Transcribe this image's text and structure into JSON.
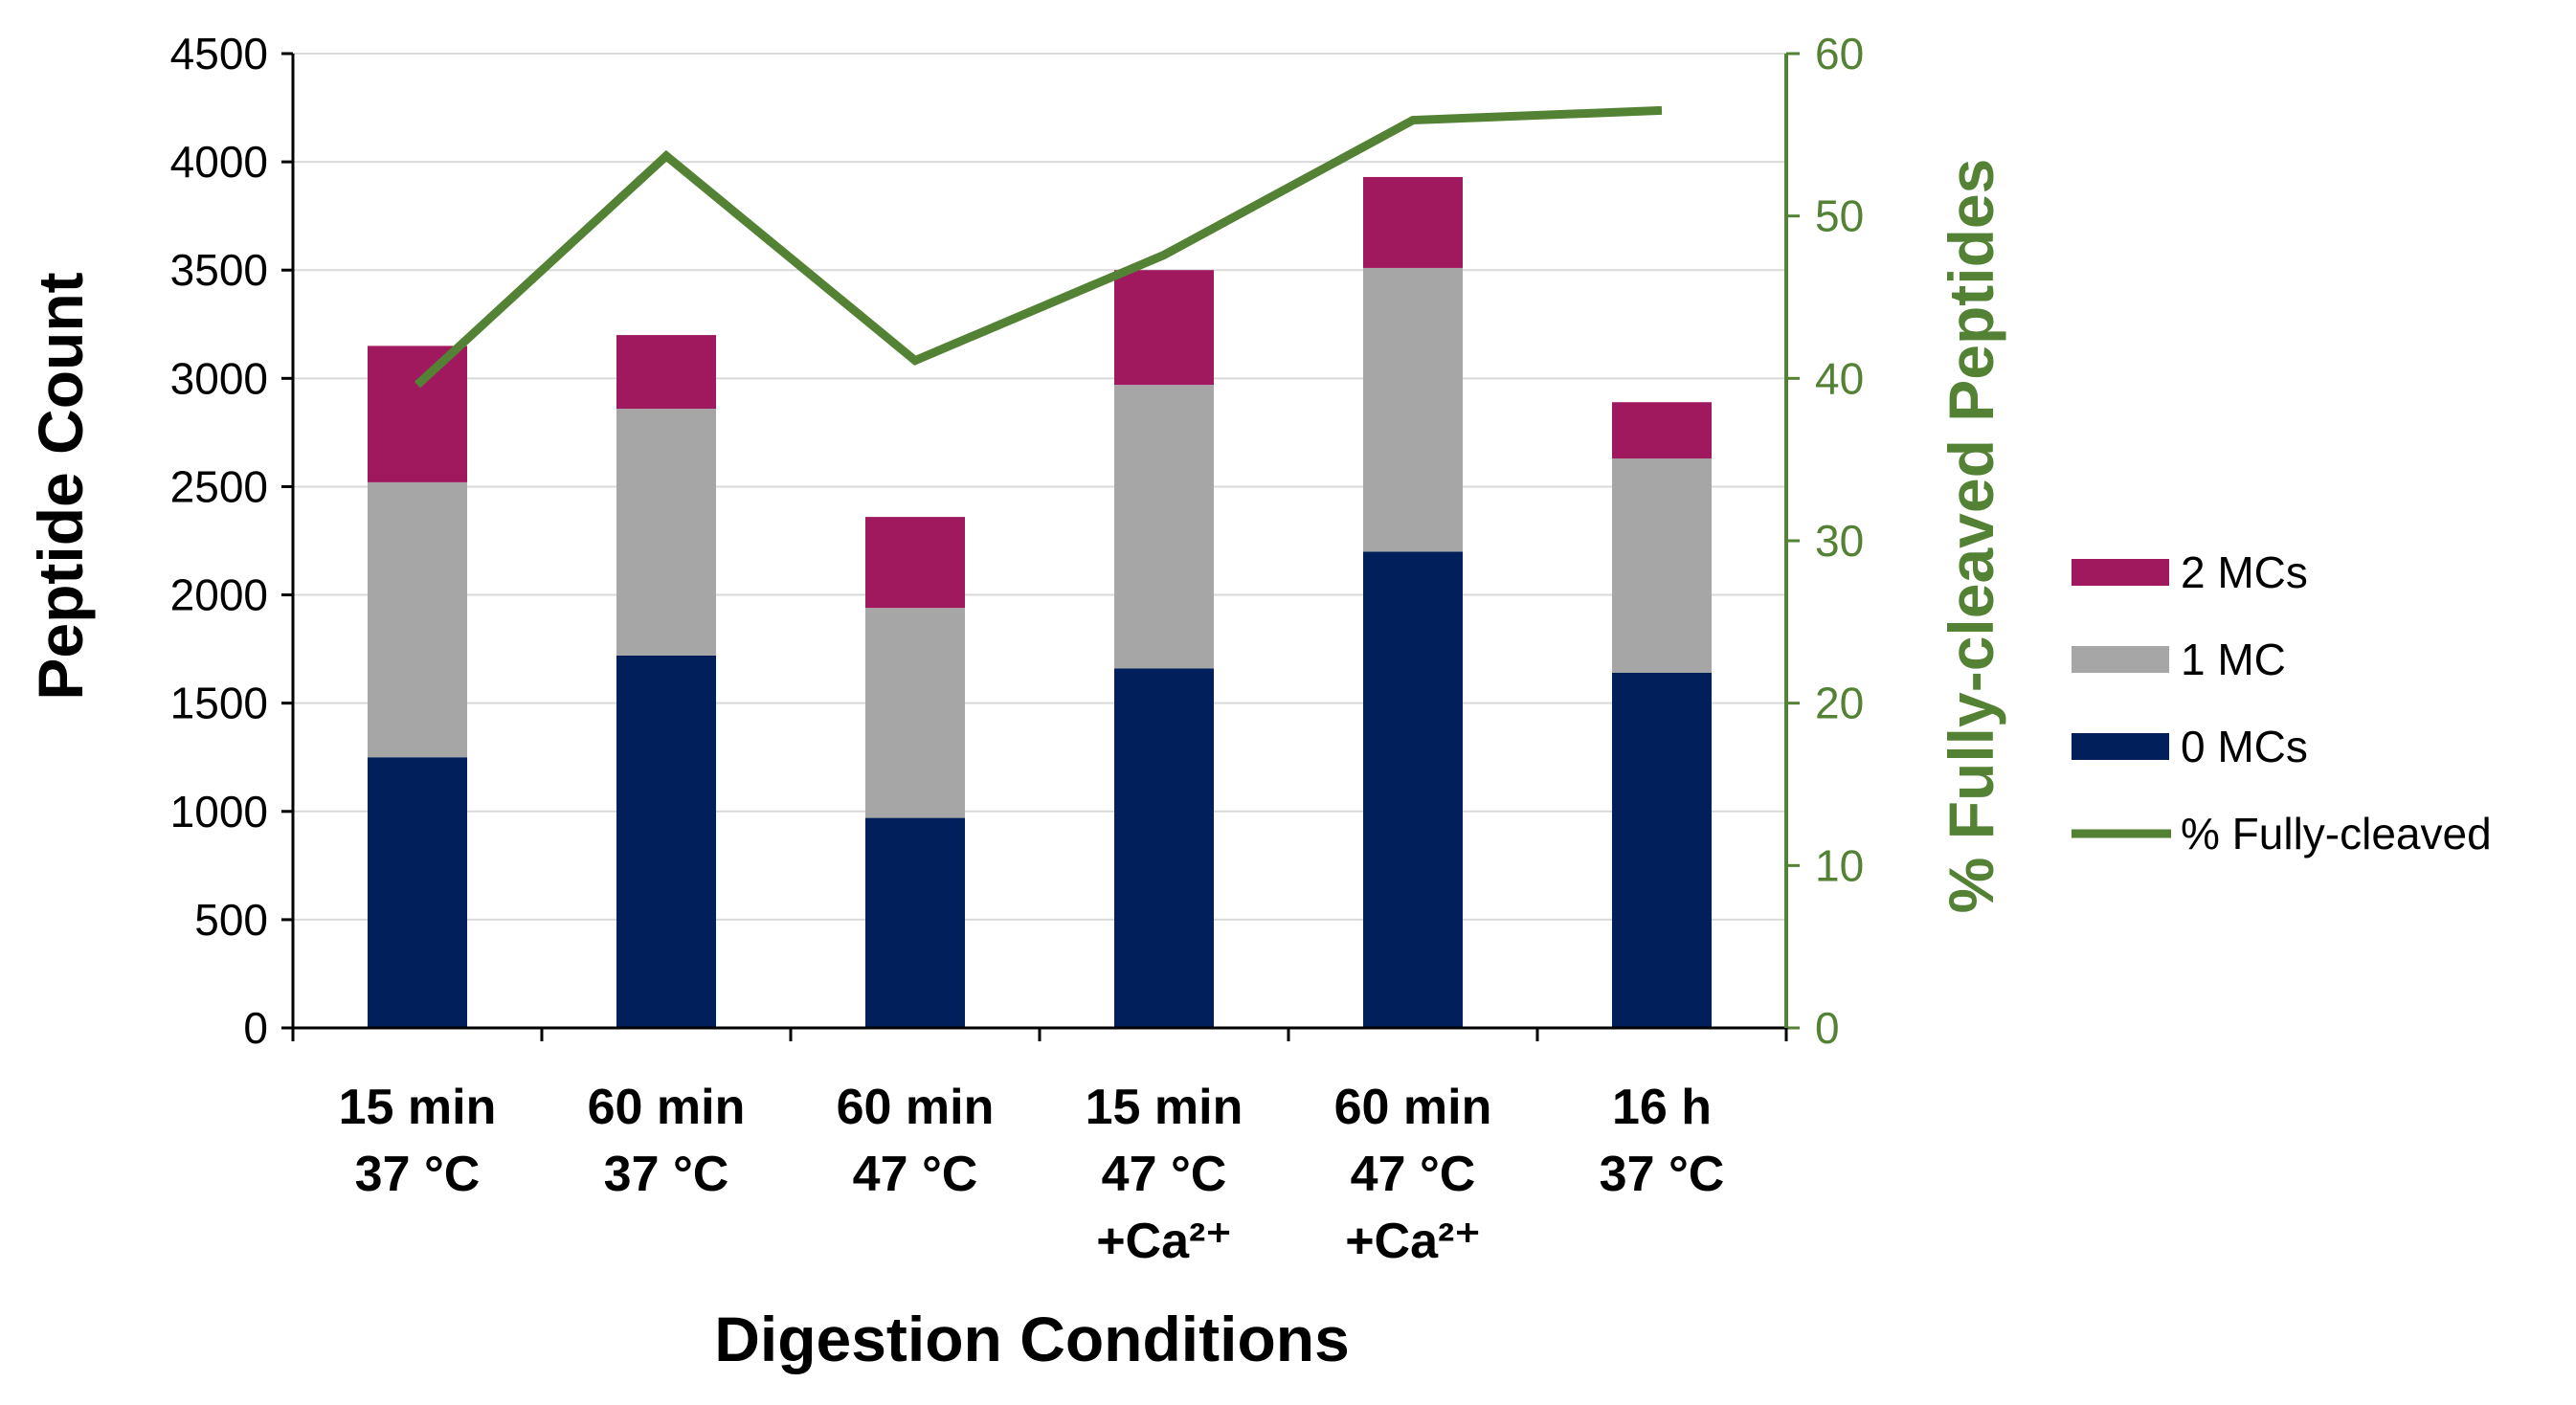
{
  "chart_data": {
    "type": "bar",
    "stacked": true,
    "categories": [
      [
        "15 min",
        "37 °C"
      ],
      [
        "60 min",
        "37 °C"
      ],
      [
        "60 min",
        "47 °C"
      ],
      [
        "15 min",
        "47 °C",
        "+Ca²⁺"
      ],
      [
        "60 min",
        "47 °C",
        "+Ca²⁺"
      ],
      [
        "16 h",
        "37 °C"
      ]
    ],
    "series": [
      {
        "name": "0 MCs",
        "color": "#001f5b",
        "values": [
          1250,
          1720,
          970,
          1660,
          2200,
          1640
        ]
      },
      {
        "name": "1 MC",
        "color": "#a6a6a6",
        "values": [
          1270,
          1140,
          970,
          1310,
          1310,
          990
        ]
      },
      {
        "name": "2 MCs",
        "color": "#a0195e",
        "values": [
          630,
          340,
          420,
          530,
          420,
          260
        ]
      }
    ],
    "line_series": {
      "name": "% Fully-cleaved",
      "color": "#548235",
      "values": [
        39.6,
        53.7,
        41.1,
        47.6,
        55.9,
        56.5
      ]
    },
    "xlabel": "Digestion Conditions",
    "ylabel": "Peptide Count",
    "ylabel_right": "% Fully-cleaved Peptides",
    "ylim": [
      0,
      4500
    ],
    "yticks": [
      0,
      500,
      1000,
      1500,
      2000,
      2500,
      3000,
      3500,
      4000,
      4500
    ],
    "ylim_right": [
      0,
      60
    ],
    "yticks_right": [
      0,
      10,
      20,
      30,
      40,
      50,
      60
    ],
    "grid": true,
    "legend_position": "right",
    "legend_order": [
      "2 MCs",
      "1 MC",
      "0 MCs",
      "% Fully-cleaved"
    ]
  }
}
